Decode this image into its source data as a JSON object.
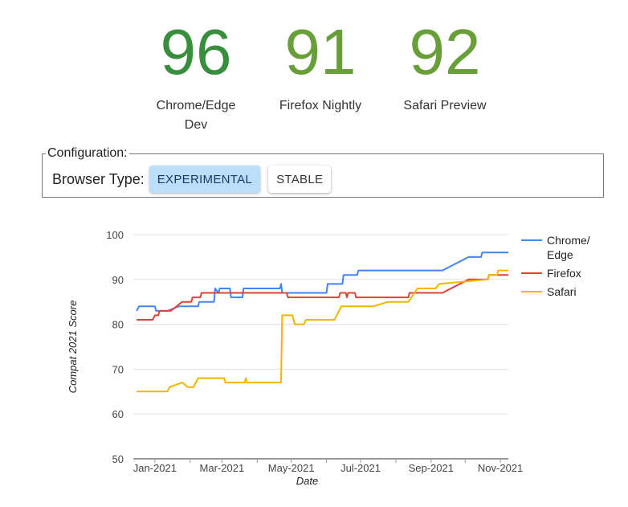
{
  "scores": [
    {
      "value": "96",
      "label_line1": "Chrome/Edge",
      "label_line2": "Dev",
      "color": "#388e3c"
    },
    {
      "value": "91",
      "label_line1": "Firefox Nightly",
      "label_line2": "",
      "color": "#689f38"
    },
    {
      "value": "92",
      "label_line1": "Safari Preview",
      "label_line2": "",
      "color": "#689f38"
    }
  ],
  "config": {
    "legend": "Configuration:",
    "browser_type_label": "Browser Type:",
    "experimental_label": "EXPERIMENTAL",
    "stable_label": "STABLE",
    "selected": "EXPERIMENTAL"
  },
  "chart_data": {
    "type": "line",
    "xlabel": "Date",
    "ylabel": "Compat 2021 Score",
    "ylim": [
      50,
      100
    ],
    "yticks": [
      50,
      60,
      70,
      80,
      90,
      100
    ],
    "xlim": [
      "2020-12-13",
      "2021-11-08"
    ],
    "xticks": [
      {
        "date": "2021-01-01",
        "label": "Jan-2021"
      },
      {
        "date": "2021-03-01",
        "label": "Mar-2021"
      },
      {
        "date": "2021-05-01",
        "label": "May-2021"
      },
      {
        "date": "2021-07-01",
        "label": "Jul-2021"
      },
      {
        "date": "2021-09-01",
        "label": "Sep-2021"
      },
      {
        "date": "2021-11-01",
        "label": "Nov-2021"
      }
    ],
    "minor_xticks": [
      "2021-02-01",
      "2021-04-01",
      "2021-06-01",
      "2021-08-01",
      "2021-10-01"
    ],
    "grid": true,
    "legend_position": "right",
    "series": [
      {
        "name": "Chrome/ Edge",
        "legend_lines": [
          "Chrome/",
          "Edge"
        ],
        "color": "#4285f4",
        "points": [
          [
            "2020-12-16",
            83
          ],
          [
            "2020-12-18",
            84
          ],
          [
            "2021-01-01",
            84
          ],
          [
            "2021-01-02",
            83
          ],
          [
            "2021-01-12",
            83
          ],
          [
            "2021-01-22",
            84
          ],
          [
            "2021-02-08",
            84
          ],
          [
            "2021-02-09",
            85
          ],
          [
            "2021-02-22",
            85
          ],
          [
            "2021-02-23",
            88
          ],
          [
            "2021-02-26",
            87
          ],
          [
            "2021-02-27",
            88
          ],
          [
            "2021-03-08",
            88
          ],
          [
            "2021-03-09",
            86
          ],
          [
            "2021-03-19",
            86
          ],
          [
            "2021-03-20",
            88
          ],
          [
            "2021-04-21",
            88
          ],
          [
            "2021-04-22",
            89
          ],
          [
            "2021-04-23",
            87
          ],
          [
            "2021-06-01",
            87
          ],
          [
            "2021-06-02",
            89
          ],
          [
            "2021-06-15",
            89
          ],
          [
            "2021-06-16",
            91
          ],
          [
            "2021-06-28",
            91
          ],
          [
            "2021-06-29",
            92
          ],
          [
            "2021-09-11",
            92
          ],
          [
            "2021-10-04",
            95
          ],
          [
            "2021-10-15",
            95
          ],
          [
            "2021-10-16",
            96
          ],
          [
            "2021-11-08",
            96
          ]
        ]
      },
      {
        "name": "Firefox",
        "legend_lines": [
          "Firefox"
        ],
        "color": "#db4437",
        "points": [
          [
            "2020-12-16",
            81
          ],
          [
            "2020-12-30",
            81
          ],
          [
            "2021-01-01",
            82
          ],
          [
            "2021-01-04",
            82
          ],
          [
            "2021-01-05",
            83
          ],
          [
            "2021-01-15",
            83
          ],
          [
            "2021-01-25",
            85
          ],
          [
            "2021-02-02",
            85
          ],
          [
            "2021-02-03",
            86
          ],
          [
            "2021-02-10",
            86
          ],
          [
            "2021-02-11",
            87
          ],
          [
            "2021-04-27",
            87
          ],
          [
            "2021-04-28",
            86
          ],
          [
            "2021-06-12",
            86
          ],
          [
            "2021-06-13",
            87
          ],
          [
            "2021-06-18",
            87
          ],
          [
            "2021-06-19",
            86
          ],
          [
            "2021-06-20",
            87
          ],
          [
            "2021-06-26",
            87
          ],
          [
            "2021-06-27",
            86
          ],
          [
            "2021-08-12",
            86
          ],
          [
            "2021-08-13",
            87
          ],
          [
            "2021-09-11",
            87
          ],
          [
            "2021-10-04",
            90
          ],
          [
            "2021-10-21",
            90
          ],
          [
            "2021-10-22",
            91
          ],
          [
            "2021-11-08",
            91
          ]
        ]
      },
      {
        "name": "Safari",
        "legend_lines": [
          "Safari"
        ],
        "color": "#f4b400",
        "points": [
          [
            "2020-12-16",
            65
          ],
          [
            "2021-01-12",
            65
          ],
          [
            "2021-01-14",
            66
          ],
          [
            "2021-01-25",
            67
          ],
          [
            "2021-01-30",
            66
          ],
          [
            "2021-02-04",
            66
          ],
          [
            "2021-02-06",
            67
          ],
          [
            "2021-02-08",
            68
          ],
          [
            "2021-03-03",
            68
          ],
          [
            "2021-03-04",
            67
          ],
          [
            "2021-03-21",
            67
          ],
          [
            "2021-03-22",
            68
          ],
          [
            "2021-03-23",
            67
          ],
          [
            "2021-04-22",
            67
          ],
          [
            "2021-04-23",
            82
          ],
          [
            "2021-05-02",
            82
          ],
          [
            "2021-05-04",
            80
          ],
          [
            "2021-05-12",
            80
          ],
          [
            "2021-05-14",
            81
          ],
          [
            "2021-06-08",
            81
          ],
          [
            "2021-06-10",
            82
          ],
          [
            "2021-06-14",
            84
          ],
          [
            "2021-07-12",
            84
          ],
          [
            "2021-07-25",
            85
          ],
          [
            "2021-08-12",
            85
          ],
          [
            "2021-08-20",
            88
          ],
          [
            "2021-09-05",
            88
          ],
          [
            "2021-09-08",
            89
          ],
          [
            "2021-10-21",
            90
          ],
          [
            "2021-10-22",
            91
          ],
          [
            "2021-10-29",
            91
          ],
          [
            "2021-10-30",
            92
          ],
          [
            "2021-11-08",
            92
          ]
        ]
      }
    ]
  }
}
